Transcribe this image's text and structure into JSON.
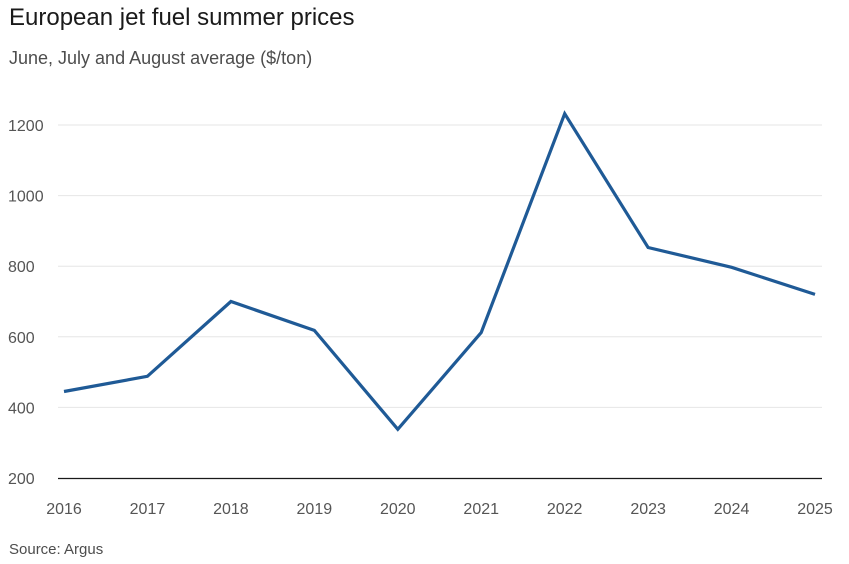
{
  "title": "European jet fuel summer prices",
  "subtitle": "June, July and August average ($/ton)",
  "source": "Source: Argus",
  "colors": {
    "line": "#1f5a96",
    "grid": "#e6e6e6",
    "axis": "#1a1a1a",
    "tick_text": "#555555"
  },
  "chart_data": {
    "type": "line",
    "title": "European jet fuel summer prices",
    "subtitle": "June, July and August average ($/ton)",
    "xlabel": "",
    "ylabel": "",
    "x": [
      "2016",
      "2017",
      "2018",
      "2019",
      "2020",
      "2021",
      "2022",
      "2023",
      "2024",
      "2025"
    ],
    "series": [
      {
        "values": [
          445,
          488,
          700,
          618,
          338,
          612,
          1232,
          853,
          797,
          720
        ]
      }
    ],
    "ylim": [
      200,
      1230
    ],
    "yticks": [
      "200",
      "400",
      "600",
      "800",
      "1000",
      "1200"
    ],
    "grid": "horizontal",
    "legend": "none"
  }
}
